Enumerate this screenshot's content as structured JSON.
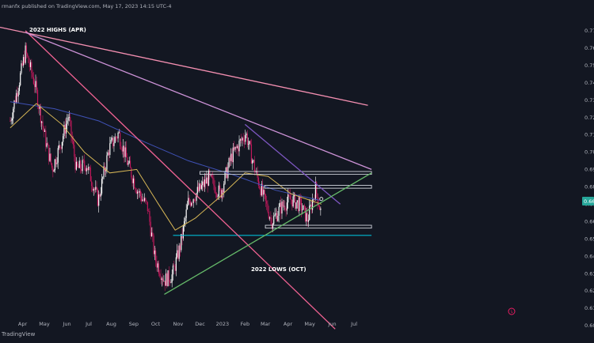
{
  "header": {
    "publisher_text": "rmanfx published on TradingView.com, May 17, 2023 14:15 UTC-4"
  },
  "footer": {
    "brand": "TradingView"
  },
  "colors": {
    "background": "#131722",
    "candle_up": "#ffffff",
    "candle_down": "#c2185b",
    "sma_short": "#d6b656",
    "sma_long": "#3f51b5",
    "trend_red": "#f06292",
    "trend_pink": "#f48fb1",
    "trend_violet": "#ce93d8",
    "trend_purple": "#7e57c2",
    "trend_green": "#66bb6a",
    "support_line": "#00bcd4",
    "price_tag": "#26a69a"
  },
  "chart_data": {
    "type": "candlestick",
    "ylim": [
      0.5995,
      0.7795
    ],
    "y_ticks": [
      "0.770",
      "0.760",
      "0.750",
      "0.740",
      "0.730",
      "0.720",
      "0.710",
      "0.700",
      "0.690",
      "0.680",
      "0.670",
      "0.660",
      "0.650",
      "0.640",
      "0.630",
      "0.620",
      "0.610",
      "0.600"
    ],
    "x_ticks": [
      "Apr",
      "May",
      "Jun",
      "Jul",
      "Aug",
      "Sep",
      "Oct",
      "Nov",
      "Dec",
      "2023",
      "Feb",
      "Mar",
      "Apr",
      "May",
      "Jun",
      "Jul"
    ],
    "last_price_label": "0.66",
    "annotations": [
      "2022 HIGHS (APR)",
      "2022 LOWS (OCT)"
    ],
    "approx_daily_close_path": [
      {
        "date": "2022-03-15",
        "close": 0.718
      },
      {
        "date": "2022-03-28",
        "close": 0.742
      },
      {
        "date": "2022-04-05",
        "close": 0.758
      },
      {
        "date": "2022-04-18",
        "close": 0.739
      },
      {
        "date": "2022-05-02",
        "close": 0.708
      },
      {
        "date": "2022-05-12",
        "close": 0.69
      },
      {
        "date": "2022-05-25",
        "close": 0.707
      },
      {
        "date": "2022-06-03",
        "close": 0.721
      },
      {
        "date": "2022-06-14",
        "close": 0.69
      },
      {
        "date": "2022-06-28",
        "close": 0.693
      },
      {
        "date": "2022-07-14",
        "close": 0.672
      },
      {
        "date": "2022-07-29",
        "close": 0.702
      },
      {
        "date": "2022-08-11",
        "close": 0.711
      },
      {
        "date": "2022-08-24",
        "close": 0.693
      },
      {
        "date": "2022-09-06",
        "close": 0.678
      },
      {
        "date": "2022-09-20",
        "close": 0.668
      },
      {
        "date": "2022-09-30",
        "close": 0.639
      },
      {
        "date": "2022-10-13",
        "close": 0.626
      },
      {
        "date": "2022-10-24",
        "close": 0.629
      },
      {
        "date": "2022-11-04",
        "close": 0.646
      },
      {
        "date": "2022-11-15",
        "close": 0.671
      },
      {
        "date": "2022-11-30",
        "close": 0.678
      },
      {
        "date": "2022-12-13",
        "close": 0.685
      },
      {
        "date": "2022-12-29",
        "close": 0.676
      },
      {
        "date": "2023-01-13",
        "close": 0.697
      },
      {
        "date": "2023-02-02",
        "close": 0.711
      },
      {
        "date": "2023-02-15",
        "close": 0.689
      },
      {
        "date": "2023-02-28",
        "close": 0.672
      },
      {
        "date": "2023-03-10",
        "close": 0.66
      },
      {
        "date": "2023-03-22",
        "close": 0.668
      },
      {
        "date": "2023-04-05",
        "close": 0.673
      },
      {
        "date": "2023-04-19",
        "close": 0.669
      },
      {
        "date": "2023-04-28",
        "close": 0.661
      },
      {
        "date": "2023-05-09",
        "close": 0.679
      },
      {
        "date": "2023-05-17",
        "close": 0.664
      }
    ],
    "approx_sma_short": [
      {
        "date": "2022-03-15",
        "value": 0.714
      },
      {
        "date": "2022-04-20",
        "value": 0.728
      },
      {
        "date": "2022-05-25",
        "value": 0.716
      },
      {
        "date": "2022-06-25",
        "value": 0.7
      },
      {
        "date": "2022-07-30",
        "value": 0.688
      },
      {
        "date": "2022-09-05",
        "value": 0.69
      },
      {
        "date": "2022-10-05",
        "value": 0.67
      },
      {
        "date": "2022-10-28",
        "value": 0.655
      },
      {
        "date": "2022-11-25",
        "value": 0.662
      },
      {
        "date": "2022-12-28",
        "value": 0.674
      },
      {
        "date": "2023-02-01",
        "value": 0.688
      },
      {
        "date": "2023-03-05",
        "value": 0.686
      },
      {
        "date": "2023-04-05",
        "value": 0.676
      },
      {
        "date": "2023-05-17",
        "value": 0.67
      }
    ],
    "approx_sma_long": [
      {
        "date": "2022-03-15",
        "value": 0.729
      },
      {
        "date": "2022-05-15",
        "value": 0.725
      },
      {
        "date": "2022-07-15",
        "value": 0.718
      },
      {
        "date": "2022-09-15",
        "value": 0.706
      },
      {
        "date": "2022-11-15",
        "value": 0.695
      },
      {
        "date": "2023-01-15",
        "value": 0.687
      },
      {
        "date": "2023-03-15",
        "value": 0.678
      },
      {
        "date": "2023-05-17",
        "value": 0.672
      }
    ],
    "trendlines": [
      {
        "name": "red",
        "start": {
          "date": "2022-04-05",
          "value": 0.77
        },
        "end": {
          "date": "2023-06-05",
          "value": 0.598
        }
      },
      {
        "name": "pink",
        "start": {
          "date": "2022-03-01",
          "value": 0.772
        },
        "end": {
          "date": "2023-07-20",
          "value": 0.727
        }
      },
      {
        "name": "violet",
        "start": {
          "date": "2022-04-05",
          "value": 0.769
        },
        "end": {
          "date": "2023-07-25",
          "value": 0.69
        }
      },
      {
        "name": "purple",
        "start": {
          "date": "2023-02-01",
          "value": 0.716
        },
        "end": {
          "date": "2023-06-12",
          "value": 0.67
        }
      },
      {
        "name": "green",
        "start": {
          "date": "2022-10-13",
          "value": 0.618
        },
        "end": {
          "date": "2023-07-25",
          "value": 0.688
        }
      }
    ],
    "horizontal_levels": [
      {
        "name": "box-0.688",
        "from": "2022-12-01",
        "to": "2023-07-25",
        "value": 0.688
      },
      {
        "name": "box-0.680",
        "from": "2023-02-28",
        "to": "2023-07-25",
        "value": 0.68
      },
      {
        "name": "box-0.657",
        "from": "2023-03-01",
        "to": "2023-07-25",
        "value": 0.657
      },
      {
        "name": "support-0.652",
        "from": "2022-10-25",
        "to": "2023-07-25",
        "value": 0.652
      }
    ]
  }
}
